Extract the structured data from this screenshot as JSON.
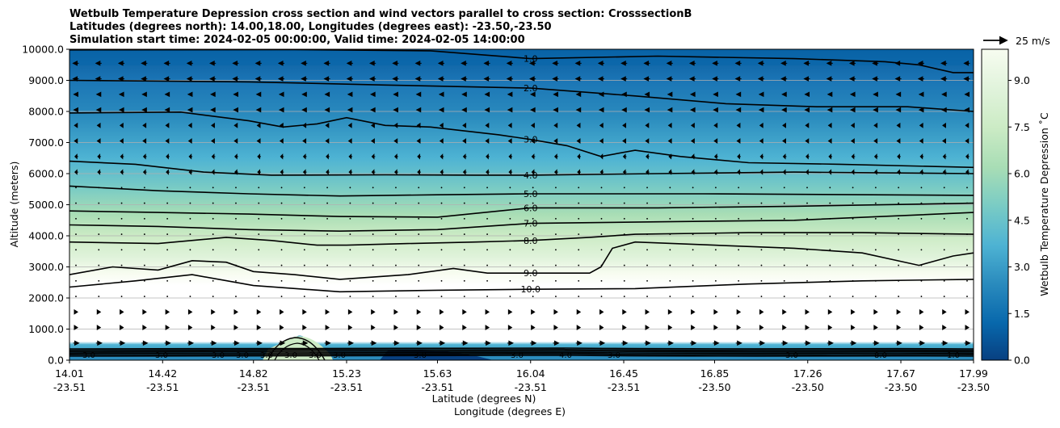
{
  "chart_data": {
    "type": "contour",
    "title_lines": [
      "Wetbulb Temperature Depression cross section and wind vectors parallel to cross section: CrosssectionB",
      "Latitudes (degrees north): 14.00,18.00, Longitudes (degrees east): -23.50,-23.50",
      "Simulation start time: 2024-02-05 00:00:00, Valid time: 2024-02-05 14:00:00"
    ],
    "ylabel": "Altitude (meters)",
    "xlabel_lat": "Latitude (degrees N)",
    "xlabel_lon": "Longitude (degrees E)",
    "ylim": [
      0,
      10000
    ],
    "yticks": [
      0,
      1000,
      2000,
      3000,
      4000,
      5000,
      6000,
      7000,
      8000,
      9000,
      10000
    ],
    "ytick_labels": [
      "0.0",
      "1000.0",
      "2000.0",
      "3000.0",
      "4000.0",
      "5000.0",
      "6000.0",
      "7000.0",
      "8000.0",
      "9000.0",
      "10000.0"
    ],
    "xlim": [
      14.01,
      17.99
    ],
    "xticks": [
      {
        "lat": "14.01",
        "lon": "-23.51",
        "v": 14.01
      },
      {
        "lat": "14.42",
        "lon": "-23.51",
        "v": 14.42
      },
      {
        "lat": "14.82",
        "lon": "-23.51",
        "v": 14.82
      },
      {
        "lat": "15.23",
        "lon": "-23.51",
        "v": 15.23
      },
      {
        "lat": "15.63",
        "lon": "-23.51",
        "v": 15.63
      },
      {
        "lat": "16.04",
        "lon": "-23.51",
        "v": 16.04
      },
      {
        "lat": "16.45",
        "lon": "-23.51",
        "v": 16.45
      },
      {
        "lat": "16.85",
        "lon": "-23.50",
        "v": 16.85
      },
      {
        "lat": "17.26",
        "lon": "-23.50",
        "v": 17.26
      },
      {
        "lat": "17.67",
        "lon": "-23.50",
        "v": 17.67
      },
      {
        "lat": "17.99",
        "lon": "-23.50",
        "v": 17.99
      }
    ],
    "colorbar": {
      "label": "Wetbulb Temperature Depression ˚C",
      "min": 0,
      "max": 10,
      "ticks": [
        "0.0",
        "1.5",
        "3.0",
        "4.5",
        "6.0",
        "7.5",
        "9.0"
      ],
      "tick_values": [
        0,
        1.5,
        3,
        4.5,
        6,
        7.5,
        9
      ],
      "colors": [
        "#084081",
        "#0868ac",
        "#2b8cbe",
        "#4eb3d3",
        "#7bccc4",
        "#a8ddb5",
        "#ccebc5",
        "#e0f3db",
        "#f7fcf0"
      ]
    },
    "quiver_key": {
      "label": "25 m/s",
      "speed": 25
    },
    "contour_labels": [
      "1.0",
      "2.0",
      "3.0",
      "4.0",
      "5.0",
      "6.0",
      "7.0",
      "8.0",
      "9.0",
      "10.0"
    ],
    "contour_levels": [
      {
        "level": 1,
        "label": "1.0",
        "label_pos": [
          16.04,
          9700
        ],
        "points": [
          [
            14.01,
            9980
          ],
          [
            15.0,
            9990
          ],
          [
            15.6,
            9950
          ],
          [
            16.04,
            9700
          ],
          [
            16.6,
            9780
          ],
          [
            17.2,
            9700
          ],
          [
            17.6,
            9600
          ],
          [
            17.75,
            9500
          ],
          [
            17.9,
            9250
          ],
          [
            17.99,
            9250
          ]
        ]
      },
      {
        "level": 2,
        "label": "2.0",
        "label_pos": [
          16.04,
          8750
        ],
        "points": [
          [
            14.01,
            9000
          ],
          [
            14.8,
            8950
          ],
          [
            15.4,
            8850
          ],
          [
            16.04,
            8750
          ],
          [
            16.5,
            8500
          ],
          [
            16.9,
            8250
          ],
          [
            17.3,
            8150
          ],
          [
            17.7,
            8150
          ],
          [
            17.99,
            8000
          ]
        ]
      },
      {
        "level": 3,
        "label": "3.0",
        "label_pos": [
          16.04,
          7100
        ],
        "points": [
          [
            14.01,
            7950
          ],
          [
            14.5,
            7980
          ],
          [
            14.8,
            7700
          ],
          [
            14.95,
            7500
          ],
          [
            15.1,
            7600
          ],
          [
            15.23,
            7800
          ],
          [
            15.4,
            7550
          ],
          [
            15.6,
            7500
          ],
          [
            15.9,
            7250
          ],
          [
            16.04,
            7100
          ],
          [
            16.2,
            6900
          ],
          [
            16.35,
            6550
          ],
          [
            16.5,
            6750
          ],
          [
            16.7,
            6550
          ],
          [
            17.0,
            6350
          ],
          [
            17.4,
            6300
          ],
          [
            17.99,
            6200
          ]
        ]
      },
      {
        "level": 4,
        "label": "4.0",
        "label_pos": [
          16.04,
          5950
        ],
        "points": [
          [
            14.01,
            6400
          ],
          [
            14.3,
            6300
          ],
          [
            14.6,
            6050
          ],
          [
            14.9,
            5950
          ],
          [
            15.4,
            5960
          ],
          [
            15.8,
            5950
          ],
          [
            16.04,
            5950
          ],
          [
            16.6,
            6000
          ],
          [
            17.2,
            6050
          ],
          [
            17.99,
            6000
          ]
        ]
      },
      {
        "level": 5,
        "label": "5.0",
        "label_pos": [
          16.04,
          5350
        ],
        "points": [
          [
            14.01,
            5600
          ],
          [
            14.4,
            5450
          ],
          [
            14.8,
            5350
          ],
          [
            15.2,
            5280
          ],
          [
            15.63,
            5320
          ],
          [
            16.04,
            5350
          ],
          [
            16.8,
            5350
          ],
          [
            17.99,
            5300
          ]
        ]
      },
      {
        "level": 6,
        "label": "6.0",
        "label_pos": [
          16.04,
          4900
        ],
        "points": [
          [
            14.01,
            4800
          ],
          [
            14.4,
            4750
          ],
          [
            14.8,
            4700
          ],
          [
            15.2,
            4620
          ],
          [
            15.63,
            4600
          ],
          [
            16.04,
            4900
          ],
          [
            16.6,
            4900
          ],
          [
            17.2,
            4950
          ],
          [
            17.99,
            5050
          ]
        ]
      },
      {
        "level": 7,
        "label": "7.0",
        "label_pos": [
          16.04,
          4400
        ],
        "points": [
          [
            14.01,
            4350
          ],
          [
            14.4,
            4300
          ],
          [
            14.8,
            4200
          ],
          [
            15.2,
            4150
          ],
          [
            15.63,
            4200
          ],
          [
            16.04,
            4400
          ],
          [
            16.6,
            4450
          ],
          [
            17.2,
            4500
          ],
          [
            17.99,
            4750
          ]
        ]
      },
      {
        "level": 8,
        "label": "8.0",
        "label_pos": [
          16.04,
          3850
        ],
        "points": [
          [
            14.01,
            3800
          ],
          [
            14.4,
            3750
          ],
          [
            14.7,
            3950
          ],
          [
            14.9,
            3850
          ],
          [
            15.1,
            3700
          ],
          [
            15.23,
            3700
          ],
          [
            15.5,
            3750
          ],
          [
            15.8,
            3800
          ],
          [
            16.04,
            3850
          ],
          [
            16.3,
            3950
          ],
          [
            16.5,
            4050
          ],
          [
            17.0,
            4100
          ],
          [
            17.5,
            4100
          ],
          [
            17.99,
            4050
          ]
        ]
      },
      {
        "level": 9,
        "label": "9.0",
        "label_pos": [
          16.04,
          2800
        ],
        "points": [
          [
            14.01,
            2750
          ],
          [
            14.2,
            3000
          ],
          [
            14.4,
            2900
          ],
          [
            14.55,
            3200
          ],
          [
            14.7,
            3150
          ],
          [
            14.82,
            2850
          ],
          [
            15.0,
            2750
          ],
          [
            15.2,
            2600
          ],
          [
            15.5,
            2750
          ],
          [
            15.7,
            2950
          ],
          [
            15.85,
            2800
          ],
          [
            16.04,
            2800
          ],
          [
            16.3,
            2800
          ],
          [
            16.35,
            3000
          ],
          [
            16.4,
            3600
          ],
          [
            16.5,
            3800
          ],
          [
            16.85,
            3700
          ],
          [
            17.2,
            3600
          ],
          [
            17.5,
            3450
          ],
          [
            17.75,
            3050
          ],
          [
            17.9,
            3350
          ],
          [
            17.99,
            3450
          ]
        ]
      },
      {
        "level": 10,
        "label": "10.0",
        "label_pos": [
          16.04,
          2280
        ],
        "points": [
          [
            14.01,
            2350
          ],
          [
            14.3,
            2550
          ],
          [
            14.55,
            2750
          ],
          [
            14.82,
            2400
          ],
          [
            15.2,
            2200
          ],
          [
            15.63,
            2250
          ],
          [
            16.04,
            2280
          ],
          [
            16.5,
            2300
          ],
          [
            17.0,
            2450
          ],
          [
            17.5,
            2550
          ],
          [
            17.99,
            2600
          ]
        ]
      }
    ],
    "surface_contour_labels": [
      "3.0",
      "3.0",
      "3.0",
      "3.0",
      "3.0",
      "3.0",
      "3.0",
      "3.0",
      "3.0",
      "3.0",
      "4.0",
      "3.0",
      "3.0",
      "8.0",
      "1.0"
    ]
  }
}
